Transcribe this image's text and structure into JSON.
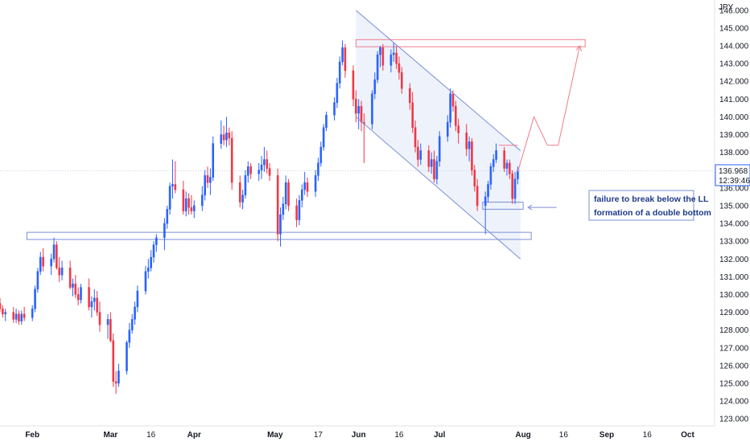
{
  "chart_data": {
    "type": "candlestick",
    "currency_label": "JPY",
    "y_axis": {
      "ticks": [
        "123.000",
        "124.000",
        "125.000",
        "126.000",
        "127.000",
        "128.000",
        "129.000",
        "130.000",
        "131.000",
        "132.000",
        "133.000",
        "134.000",
        "135.000",
        "136.000",
        "137.000",
        "138.000",
        "139.000",
        "140.000",
        "141.000",
        "142.000",
        "143.000",
        "144.000",
        "145.000",
        "146.000"
      ],
      "ylim": [
        122.6,
        146.4
      ]
    },
    "x_axis": {
      "labels": [
        {
          "text": "Feb",
          "bold": true,
          "day": 30
        },
        {
          "text": "Mar",
          "bold": true,
          "day": 59
        },
        {
          "text": "16",
          "bold": false,
          "day": 74
        },
        {
          "text": "Apr",
          "bold": true,
          "day": 90
        },
        {
          "text": "May",
          "bold": true,
          "day": 120
        },
        {
          "text": "17",
          "bold": false,
          "day": 136
        },
        {
          "text": "Jun",
          "bold": true,
          "day": 151
        },
        {
          "text": "16",
          "bold": false,
          "day": 166
        },
        {
          "text": "Jul",
          "bold": true,
          "day": 181
        },
        {
          "text": "Aug",
          "bold": true,
          "day": 212
        },
        {
          "text": "16",
          "bold": false,
          "day": 227
        },
        {
          "text": "Sep",
          "bold": true,
          "day": 243
        },
        {
          "text": "16",
          "bold": false,
          "day": 258
        },
        {
          "text": "Oct",
          "bold": true,
          "day": 273
        }
      ],
      "xlim": [
        18,
        283
      ]
    },
    "current_price": {
      "value": "136.968",
      "timer": "12:39:46",
      "level": 136.968
    },
    "colors": {
      "up": "#2962ff",
      "down": "#f23645",
      "channel": "#7b8fd6",
      "support": "#7b8fd6",
      "resistance": "#f07c8a",
      "path": "#f07c8a",
      "bg_fill": "#eef2fb"
    },
    "candles": [
      {
        "d": 18,
        "o": 129.5,
        "h": 129.8,
        "l": 129.0,
        "c": 129.2
      },
      {
        "d": 19,
        "o": 129.2,
        "h": 129.4,
        "l": 128.7,
        "c": 128.9
      },
      {
        "d": 20,
        "o": 128.9,
        "h": 129.2,
        "l": 128.5,
        "c": 129.0
      },
      {
        "d": 23,
        "o": 129.0,
        "h": 129.3,
        "l": 128.4,
        "c": 128.6
      },
      {
        "d": 24,
        "o": 128.6,
        "h": 129.2,
        "l": 128.4,
        "c": 128.9
      },
      {
        "d": 25,
        "o": 128.9,
        "h": 129.1,
        "l": 128.3,
        "c": 128.5
      },
      {
        "d": 26,
        "o": 128.5,
        "h": 129.1,
        "l": 128.3,
        "c": 128.9
      },
      {
        "d": 27,
        "o": 128.9,
        "h": 129.3,
        "l": 128.5,
        "c": 128.7
      },
      {
        "d": 30,
        "o": 128.7,
        "h": 129.4,
        "l": 128.5,
        "c": 129.2
      },
      {
        "d": 31,
        "o": 129.2,
        "h": 130.5,
        "l": 129.0,
        "c": 130.3
      },
      {
        "d": 32,
        "o": 130.3,
        "h": 131.5,
        "l": 130.1,
        "c": 131.3
      },
      {
        "d": 33,
        "o": 131.3,
        "h": 132.4,
        "l": 131.1,
        "c": 132.1
      },
      {
        "d": 34,
        "o": 132.1,
        "h": 132.6,
        "l": 131.3,
        "c": 131.6
      },
      {
        "d": 37,
        "o": 131.6,
        "h": 132.3,
        "l": 131.1,
        "c": 132.0
      },
      {
        "d": 38,
        "o": 132.0,
        "h": 133.2,
        "l": 131.8,
        "c": 132.8
      },
      {
        "d": 39,
        "o": 132.8,
        "h": 133.0,
        "l": 131.4,
        "c": 131.5
      },
      {
        "d": 40,
        "o": 131.5,
        "h": 132.1,
        "l": 130.7,
        "c": 131.1
      },
      {
        "d": 41,
        "o": 131.1,
        "h": 131.9,
        "l": 130.8,
        "c": 131.5
      },
      {
        "d": 44,
        "o": 131.5,
        "h": 131.9,
        "l": 130.3,
        "c": 130.4
      },
      {
        "d": 45,
        "o": 130.4,
        "h": 130.9,
        "l": 129.9,
        "c": 130.6
      },
      {
        "d": 46,
        "o": 130.6,
        "h": 131.1,
        "l": 129.8,
        "c": 130.0
      },
      {
        "d": 47,
        "o": 130.0,
        "h": 130.4,
        "l": 129.4,
        "c": 129.7
      },
      {
        "d": 48,
        "o": 129.7,
        "h": 130.6,
        "l": 129.5,
        "c": 130.4
      },
      {
        "d": 51,
        "o": 130.4,
        "h": 130.9,
        "l": 129.1,
        "c": 129.3
      },
      {
        "d": 52,
        "o": 129.3,
        "h": 129.9,
        "l": 128.7,
        "c": 129.6
      },
      {
        "d": 53,
        "o": 129.6,
        "h": 130.3,
        "l": 129.1,
        "c": 129.8
      },
      {
        "d": 54,
        "o": 129.8,
        "h": 130.2,
        "l": 128.8,
        "c": 129.0
      },
      {
        "d": 55,
        "o": 129.0,
        "h": 129.6,
        "l": 127.9,
        "c": 128.3
      },
      {
        "d": 58,
        "o": 128.3,
        "h": 128.9,
        "l": 127.5,
        "c": 128.6
      },
      {
        "d": 59,
        "o": 128.6,
        "h": 129.0,
        "l": 127.3,
        "c": 127.4
      },
      {
        "d": 60,
        "o": 127.4,
        "h": 127.8,
        "l": 124.8,
        "c": 125.1
      },
      {
        "d": 61,
        "o": 125.1,
        "h": 125.7,
        "l": 124.4,
        "c": 125.0
      },
      {
        "d": 62,
        "o": 125.0,
        "h": 126.1,
        "l": 124.8,
        "c": 125.7
      },
      {
        "d": 65,
        "o": 125.7,
        "h": 127.4,
        "l": 125.5,
        "c": 127.3
      },
      {
        "d": 66,
        "o": 127.3,
        "h": 128.4,
        "l": 127.0,
        "c": 128.0
      },
      {
        "d": 67,
        "o": 128.0,
        "h": 128.9,
        "l": 127.8,
        "c": 128.6
      },
      {
        "d": 68,
        "o": 128.6,
        "h": 129.6,
        "l": 128.3,
        "c": 129.3
      },
      {
        "d": 69,
        "o": 129.3,
        "h": 130.5,
        "l": 129.0,
        "c": 130.2
      },
      {
        "d": 72,
        "o": 130.2,
        "h": 131.6,
        "l": 130.0,
        "c": 131.3
      },
      {
        "d": 73,
        "o": 131.3,
        "h": 132.0,
        "l": 130.9,
        "c": 131.5
      },
      {
        "d": 74,
        "o": 131.5,
        "h": 132.5,
        "l": 131.3,
        "c": 132.1
      },
      {
        "d": 75,
        "o": 132.1,
        "h": 133.0,
        "l": 131.8,
        "c": 132.8
      },
      {
        "d": 76,
        "o": 132.8,
        "h": 133.4,
        "l": 132.4,
        "c": 133.2
      },
      {
        "d": 79,
        "o": 133.2,
        "h": 134.3,
        "l": 132.5,
        "c": 134.0
      },
      {
        "d": 80,
        "o": 134.0,
        "h": 135.0,
        "l": 133.7,
        "c": 134.8
      },
      {
        "d": 81,
        "o": 134.8,
        "h": 136.3,
        "l": 134.5,
        "c": 136.1
      },
      {
        "d": 82,
        "o": 136.1,
        "h": 137.6,
        "l": 135.4,
        "c": 136.2
      },
      {
        "d": 83,
        "o": 136.2,
        "h": 137.5,
        "l": 135.7,
        "c": 135.9
      },
      {
        "d": 86,
        "o": 135.9,
        "h": 136.4,
        "l": 134.5,
        "c": 134.7
      },
      {
        "d": 87,
        "o": 134.7,
        "h": 135.8,
        "l": 134.4,
        "c": 135.4
      },
      {
        "d": 88,
        "o": 135.4,
        "h": 135.7,
        "l": 134.5,
        "c": 134.9
      },
      {
        "d": 89,
        "o": 134.9,
        "h": 135.6,
        "l": 134.5,
        "c": 134.7
      },
      {
        "d": 90,
        "o": 134.7,
        "h": 135.3,
        "l": 134.3,
        "c": 135.0
      },
      {
        "d": 93,
        "o": 135.0,
        "h": 136.1,
        "l": 134.7,
        "c": 135.6
      },
      {
        "d": 94,
        "o": 135.6,
        "h": 137.0,
        "l": 135.3,
        "c": 136.7
      },
      {
        "d": 95,
        "o": 136.7,
        "h": 137.2,
        "l": 136.0,
        "c": 136.3
      },
      {
        "d": 96,
        "o": 136.3,
        "h": 137.1,
        "l": 135.6,
        "c": 136.6
      },
      {
        "d": 97,
        "o": 136.6,
        "h": 138.9,
        "l": 136.4,
        "c": 138.5
      },
      {
        "d": 100,
        "o": 138.5,
        "h": 139.8,
        "l": 138.2,
        "c": 139.0
      },
      {
        "d": 101,
        "o": 139.0,
        "h": 139.5,
        "l": 138.4,
        "c": 138.7
      },
      {
        "d": 102,
        "o": 138.7,
        "h": 140.0,
        "l": 138.3,
        "c": 139.1
      },
      {
        "d": 103,
        "o": 139.1,
        "h": 139.4,
        "l": 138.4,
        "c": 138.8
      },
      {
        "d": 104,
        "o": 138.8,
        "h": 139.2,
        "l": 135.9,
        "c": 136.3
      },
      {
        "d": 107,
        "o": 136.3,
        "h": 136.7,
        "l": 134.9,
        "c": 135.2
      },
      {
        "d": 108,
        "o": 135.2,
        "h": 135.9,
        "l": 134.8,
        "c": 135.6
      },
      {
        "d": 109,
        "o": 135.6,
        "h": 137.0,
        "l": 135.4,
        "c": 136.7
      },
      {
        "d": 110,
        "o": 136.7,
        "h": 137.5,
        "l": 136.3,
        "c": 137.2
      },
      {
        "d": 111,
        "o": 137.2,
        "h": 137.4,
        "l": 136.5,
        "c": 136.8
      },
      {
        "d": 114,
        "o": 136.8,
        "h": 137.4,
        "l": 136.4,
        "c": 137.0
      },
      {
        "d": 115,
        "o": 137.0,
        "h": 137.8,
        "l": 136.5,
        "c": 137.3
      },
      {
        "d": 116,
        "o": 137.3,
        "h": 138.3,
        "l": 136.9,
        "c": 137.6
      },
      {
        "d": 117,
        "o": 137.6,
        "h": 138.1,
        "l": 136.8,
        "c": 137.1
      },
      {
        "d": 118,
        "o": 137.1,
        "h": 137.4,
        "l": 136.4,
        "c": 136.7
      },
      {
        "d": 121,
        "o": 136.7,
        "h": 137.1,
        "l": 133.0,
        "c": 133.4
      },
      {
        "d": 122,
        "o": 133.4,
        "h": 134.9,
        "l": 132.7,
        "c": 134.5
      },
      {
        "d": 123,
        "o": 134.5,
        "h": 135.5,
        "l": 134.2,
        "c": 135.1
      },
      {
        "d": 124,
        "o": 135.1,
        "h": 136.7,
        "l": 134.8,
        "c": 136.3
      },
      {
        "d": 125,
        "o": 136.3,
        "h": 136.5,
        "l": 134.7,
        "c": 135.0
      },
      {
        "d": 128,
        "o": 135.0,
        "h": 135.4,
        "l": 133.8,
        "c": 134.2
      },
      {
        "d": 129,
        "o": 134.2,
        "h": 135.6,
        "l": 133.9,
        "c": 135.3
      },
      {
        "d": 130,
        "o": 135.3,
        "h": 136.2,
        "l": 134.9,
        "c": 135.9
      },
      {
        "d": 131,
        "o": 135.9,
        "h": 136.9,
        "l": 135.6,
        "c": 136.3
      },
      {
        "d": 132,
        "o": 136.3,
        "h": 136.6,
        "l": 135.5,
        "c": 135.8
      },
      {
        "d": 135,
        "o": 135.8,
        "h": 137.0,
        "l": 135.5,
        "c": 136.7
      },
      {
        "d": 136,
        "o": 136.7,
        "h": 137.7,
        "l": 136.4,
        "c": 137.4
      },
      {
        "d": 137,
        "o": 137.4,
        "h": 138.6,
        "l": 137.2,
        "c": 138.3
      },
      {
        "d": 138,
        "o": 138.3,
        "h": 139.6,
        "l": 138.1,
        "c": 139.4
      },
      {
        "d": 139,
        "o": 139.4,
        "h": 140.3,
        "l": 139.2,
        "c": 140.1
      },
      {
        "d": 142,
        "o": 140.1,
        "h": 141.1,
        "l": 139.8,
        "c": 140.8
      },
      {
        "d": 143,
        "o": 140.8,
        "h": 142.2,
        "l": 140.5,
        "c": 141.9
      },
      {
        "d": 144,
        "o": 141.9,
        "h": 143.4,
        "l": 141.6,
        "c": 143.1
      },
      {
        "d": 145,
        "o": 143.1,
        "h": 144.3,
        "l": 142.9,
        "c": 143.9
      },
      {
        "d": 146,
        "o": 143.9,
        "h": 144.1,
        "l": 142.2,
        "c": 142.6
      },
      {
        "d": 149,
        "o": 142.6,
        "h": 142.9,
        "l": 140.6,
        "c": 141.0
      },
      {
        "d": 150,
        "o": 141.0,
        "h": 141.5,
        "l": 139.7,
        "c": 140.2
      },
      {
        "d": 151,
        "o": 140.2,
        "h": 141.0,
        "l": 139.3,
        "c": 140.6
      },
      {
        "d": 152,
        "o": 140.6,
        "h": 140.9,
        "l": 139.2,
        "c": 139.7
      },
      {
        "d": 153,
        "o": 139.7,
        "h": 140.2,
        "l": 137.4,
        "c": 139.6
      },
      {
        "d": 156,
        "o": 139.6,
        "h": 141.5,
        "l": 139.3,
        "c": 141.3
      },
      {
        "d": 157,
        "o": 141.3,
        "h": 142.5,
        "l": 141.0,
        "c": 142.1
      },
      {
        "d": 158,
        "o": 142.1,
        "h": 143.7,
        "l": 141.9,
        "c": 143.5
      },
      {
        "d": 159,
        "o": 143.5,
        "h": 144.0,
        "l": 142.8,
        "c": 143.9
      },
      {
        "d": 160,
        "o": 143.9,
        "h": 144.1,
        "l": 142.6,
        "c": 142.9
      },
      {
        "d": 163,
        "o": 142.9,
        "h": 143.8,
        "l": 142.5,
        "c": 143.5
      },
      {
        "d": 164,
        "o": 143.5,
        "h": 144.2,
        "l": 143.1,
        "c": 143.6
      },
      {
        "d": 165,
        "o": 143.6,
        "h": 144.0,
        "l": 142.7,
        "c": 143.0
      },
      {
        "d": 166,
        "o": 143.0,
        "h": 143.4,
        "l": 142.1,
        "c": 142.5
      },
      {
        "d": 167,
        "o": 142.5,
        "h": 142.8,
        "l": 141.3,
        "c": 141.6
      },
      {
        "d": 170,
        "o": 141.6,
        "h": 141.9,
        "l": 140.4,
        "c": 140.8
      },
      {
        "d": 171,
        "o": 140.8,
        "h": 141.4,
        "l": 139.1,
        "c": 139.4
      },
      {
        "d": 172,
        "o": 139.4,
        "h": 139.8,
        "l": 138.0,
        "c": 138.3
      },
      {
        "d": 173,
        "o": 138.3,
        "h": 138.7,
        "l": 137.2,
        "c": 137.6
      },
      {
        "d": 174,
        "o": 137.6,
        "h": 138.5,
        "l": 137.3,
        "c": 138.1
      },
      {
        "d": 177,
        "o": 138.1,
        "h": 138.4,
        "l": 136.9,
        "c": 137.2
      },
      {
        "d": 178,
        "o": 137.2,
        "h": 138.0,
        "l": 136.8,
        "c": 137.6
      },
      {
        "d": 179,
        "o": 137.6,
        "h": 138.1,
        "l": 136.3,
        "c": 136.5
      },
      {
        "d": 180,
        "o": 136.5,
        "h": 137.8,
        "l": 136.2,
        "c": 137.5
      },
      {
        "d": 181,
        "o": 137.5,
        "h": 139.2,
        "l": 137.2,
        "c": 138.9
      },
      {
        "d": 184,
        "o": 138.9,
        "h": 140.1,
        "l": 138.6,
        "c": 139.7
      },
      {
        "d": 185,
        "o": 139.7,
        "h": 141.6,
        "l": 139.4,
        "c": 141.3
      },
      {
        "d": 186,
        "o": 141.3,
        "h": 141.5,
        "l": 140.3,
        "c": 140.6
      },
      {
        "d": 187,
        "o": 140.6,
        "h": 140.9,
        "l": 139.2,
        "c": 139.5
      },
      {
        "d": 188,
        "o": 139.5,
        "h": 139.9,
        "l": 138.5,
        "c": 139.1
      },
      {
        "d": 191,
        "o": 139.1,
        "h": 139.6,
        "l": 137.8,
        "c": 138.2
      },
      {
        "d": 192,
        "o": 138.2,
        "h": 138.9,
        "l": 137.5,
        "c": 138.6
      },
      {
        "d": 193,
        "o": 138.6,
        "h": 138.8,
        "l": 136.7,
        "c": 137.0
      },
      {
        "d": 194,
        "o": 137.0,
        "h": 137.3,
        "l": 135.8,
        "c": 136.1
      },
      {
        "d": 195,
        "o": 136.1,
        "h": 136.5,
        "l": 134.7,
        "c": 135.0
      },
      {
        "d": 198,
        "o": 135.0,
        "h": 135.8,
        "l": 133.4,
        "c": 135.5
      },
      {
        "d": 199,
        "o": 135.5,
        "h": 136.4,
        "l": 135.2,
        "c": 136.2
      },
      {
        "d": 200,
        "o": 136.2,
        "h": 137.4,
        "l": 135.9,
        "c": 137.2
      },
      {
        "d": 201,
        "o": 137.2,
        "h": 137.9,
        "l": 136.9,
        "c": 137.6
      },
      {
        "d": 202,
        "o": 137.6,
        "h": 138.5,
        "l": 137.4,
        "c": 138.1
      },
      {
        "d": 205,
        "o": 138.1,
        "h": 138.3,
        "l": 136.9,
        "c": 137.1
      },
      {
        "d": 206,
        "o": 137.1,
        "h": 137.6,
        "l": 136.7,
        "c": 137.4
      },
      {
        "d": 207,
        "o": 137.4,
        "h": 137.6,
        "l": 136.5,
        "c": 136.8
      },
      {
        "d": 208,
        "o": 136.8,
        "h": 137.0,
        "l": 135.1,
        "c": 135.4
      },
      {
        "d": 209,
        "o": 135.4,
        "h": 136.9,
        "l": 135.1,
        "c": 136.5
      },
      {
        "d": 210,
        "o": 136.5,
        "h": 137.2,
        "l": 136.2,
        "c": 136.968
      }
    ],
    "drawings": {
      "channel_upper": {
        "p1": [
          150,
          146.0
        ],
        "p2": [
          211,
          138.1
        ]
      },
      "channel_lower": {
        "p1": [
          150,
          140.0
        ],
        "p2": [
          211,
          132.0
        ]
      },
      "channel_fill": {
        "p1": [
          150,
          146.0
        ],
        "p2": [
          211,
          138.1
        ],
        "p3": [
          211,
          132.0
        ],
        "p4": [
          150,
          140.0
        ]
      },
      "support_box": {
        "d1": 28,
        "d2": 215,
        "top": 133.5,
        "bottom": 133.1
      },
      "resistance_box": {
        "d1": 150,
        "d2": 235,
        "top": 144.35,
        "bottom": 143.95
      },
      "double_bottom_box": {
        "d1": 197,
        "d2": 212,
        "top": 135.2,
        "bottom": 134.8
      },
      "pivot_line": {
        "d1": 203,
        "d2": 210,
        "level": 138.4
      },
      "projection_path": [
        [
          210,
          136.9
        ],
        [
          216,
          140.0
        ],
        [
          221,
          138.4
        ],
        [
          225,
          138.4
        ],
        [
          233,
          144.0
        ]
      ],
      "annotation_arrow": {
        "from": [
          222,
          134.9
        ],
        "to": [
          212,
          134.9
        ]
      }
    },
    "annotations": [
      "failure to break below the LL",
      "formation of a double bottom"
    ]
  }
}
